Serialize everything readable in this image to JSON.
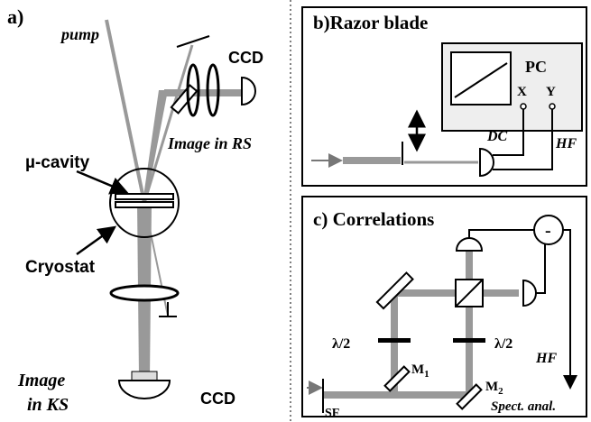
{
  "panel_a": {
    "label": "a)",
    "pump": "pump",
    "ccd_top": "CCD",
    "image_rs": "Image in RS",
    "cavity": "µ-cavity",
    "cryostat": "Cryostat",
    "image_ks": [
      "Image",
      "in KS"
    ],
    "ccd_bottom": "CCD"
  },
  "panel_b": {
    "title": "b)Razor blade",
    "pc": "PC",
    "x": "X",
    "y": "Y",
    "dc": "DC",
    "hf": "HF"
  },
  "panel_c": {
    "title": "c) Correlations",
    "minus": "-",
    "plate_left": "λ/2",
    "plate_right": "λ/2",
    "m1": {
      "label": "M",
      "sub": "1"
    },
    "m2": {
      "label": "M",
      "sub": "2"
    },
    "hf": "HF",
    "spect": "Spect. anal.",
    "sf": "SF"
  }
}
